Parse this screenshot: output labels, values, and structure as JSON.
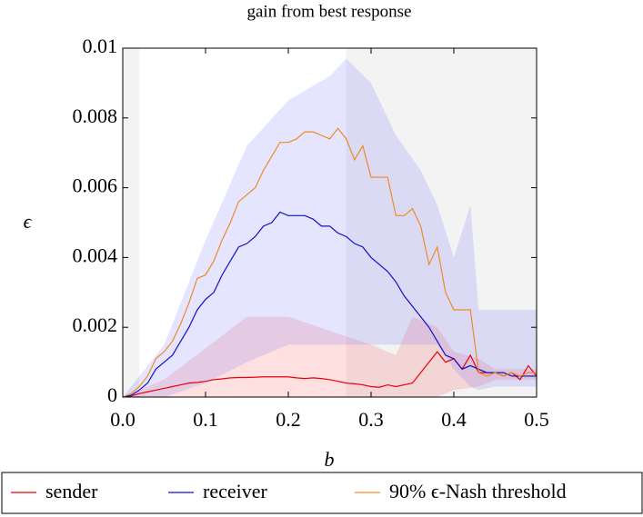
{
  "chart_data": {
    "type": "line",
    "title": "gain from best response",
    "x_label": "b",
    "y_label": "ϵ",
    "xlim": [
      0,
      0.5
    ],
    "ylim": [
      0,
      0.01
    ],
    "xticks": [
      {
        "value": 0,
        "label": "0.0"
      },
      0.1,
      0.2,
      0.3,
      0.4,
      0.5
    ],
    "yticks": [
      0,
      0.002,
      0.004,
      0.006,
      0.008,
      0.01
    ],
    "shaded_regions": [
      [
        0,
        0.02
      ],
      [
        0.27,
        0.5
      ]
    ],
    "x": [
      0,
      0.01,
      0.02,
      0.03,
      0.04,
      0.05,
      0.06,
      0.07,
      0.08,
      0.09,
      0.1,
      0.11,
      0.12,
      0.13,
      0.14,
      0.15,
      0.16,
      0.17,
      0.18,
      0.19,
      0.2,
      0.21,
      0.22,
      0.23,
      0.24,
      0.25,
      0.26,
      0.27,
      0.28,
      0.29,
      0.3,
      0.31,
      0.32,
      0.33,
      0.34,
      0.35,
      0.36,
      0.37,
      0.38,
      0.39,
      0.4,
      0.41,
      0.42,
      0.43,
      0.44,
      0.45,
      0.46,
      0.47,
      0.48,
      0.49,
      0.5
    ],
    "series": [
      {
        "name": "sender",
        "color": "#e8000b",
        "values": [
          0,
          3e-05,
          0.0001,
          0.00015,
          0.0002,
          0.00025,
          0.0003,
          0.00035,
          0.0004,
          0.00042,
          0.00045,
          0.0005,
          0.00052,
          0.00055,
          0.00056,
          0.00056,
          0.00057,
          0.00058,
          0.00058,
          0.00058,
          0.00058,
          0.00055,
          0.00053,
          0.00055,
          0.00053,
          0.0005,
          0.00045,
          0.0004,
          0.00038,
          0.00035,
          0.0003,
          0.00028,
          0.00035,
          0.0003,
          0.00035,
          0.0004,
          0.0007,
          0.001,
          0.0013,
          0.001,
          0.0011,
          0.0008,
          0.0012,
          0.0007,
          0.0007,
          0.0007,
          0.0006,
          0.0007,
          0.0005,
          0.0009,
          0.0006
        ],
        "band": {
          "color": "#ff3030",
          "x": [
            0,
            0.05,
            0.1,
            0.15,
            0.2,
            0.25,
            0.3,
            0.33,
            0.35,
            0.38,
            0.4,
            0.43,
            0.45,
            0.5
          ],
          "upper": [
            0,
            0.0005,
            0.0014,
            0.0023,
            0.0023,
            0.0019,
            0.0015,
            0.0012,
            0.0023,
            0.002,
            0.0013,
            0.0011,
            0.0008,
            0.0008
          ],
          "lower": [
            0,
            0,
            0,
            0,
            0,
            0,
            0,
            0,
            0,
            0,
            0.0002,
            0.0003,
            0.0005,
            0.0005
          ]
        }
      },
      {
        "name": "receiver",
        "color": "#1010c8",
        "values": [
          0,
          5e-05,
          0.0002,
          0.0004,
          0.0008,
          0.001,
          0.0012,
          0.0016,
          0.002,
          0.0025,
          0.0028,
          0.003,
          0.0035,
          0.0039,
          0.0043,
          0.0044,
          0.0046,
          0.0049,
          0.005,
          0.0053,
          0.0052,
          0.0052,
          0.0052,
          0.0051,
          0.0049,
          0.0049,
          0.0047,
          0.0046,
          0.0044,
          0.0043,
          0.004,
          0.0038,
          0.0036,
          0.0033,
          0.0029,
          0.0026,
          0.0023,
          0.002,
          0.0016,
          0.0012,
          0.0011,
          0.0008,
          0.0009,
          0.0008,
          0.0007,
          0.0007,
          0.0007,
          0.0006,
          0.0006,
          0.0006,
          0.0006
        ],
        "band": {
          "color": "#5050ff",
          "x": [
            0,
            0.05,
            0.1,
            0.15,
            0.2,
            0.25,
            0.27,
            0.3,
            0.33,
            0.36,
            0.38,
            0.4,
            0.42,
            0.43,
            0.45,
            0.5
          ],
          "upper": [
            0,
            0.0015,
            0.0045,
            0.0072,
            0.0085,
            0.0092,
            0.0097,
            0.009,
            0.0075,
            0.0065,
            0.0055,
            0.004,
            0.0055,
            0.0025,
            0.0025,
            0.0025
          ],
          "lower": [
            0,
            0,
            0.0004,
            0.001,
            0.0015,
            0.0015,
            0.0015,
            0.0015,
            0.0015,
            0.0015,
            0.0015,
            0.0008,
            0.0003,
            0.0002,
            0.0003,
            0.0003
          ]
        }
      },
      {
        "name": "90% ϵ-Nash threshold",
        "color": "#f08a24",
        "values": [
          0,
          0.0001,
          0.0003,
          0.0006,
          0.0011,
          0.0013,
          0.0016,
          0.0021,
          0.0027,
          0.0034,
          0.0035,
          0.0039,
          0.0045,
          0.005,
          0.0056,
          0.0058,
          0.006,
          0.0065,
          0.0069,
          0.0073,
          0.0073,
          0.0074,
          0.0076,
          0.0076,
          0.0075,
          0.0074,
          0.0077,
          0.0074,
          0.0068,
          0.0072,
          0.0063,
          0.0063,
          0.0063,
          0.0052,
          0.0052,
          0.0054,
          0.0049,
          0.0038,
          0.0043,
          0.003,
          0.0025,
          0.0025,
          0.0025,
          0.0007,
          0.0006,
          0.0007,
          0.0006,
          0.0007,
          0.0006,
          0.0007,
          0.0007
        ]
      }
    ]
  }
}
